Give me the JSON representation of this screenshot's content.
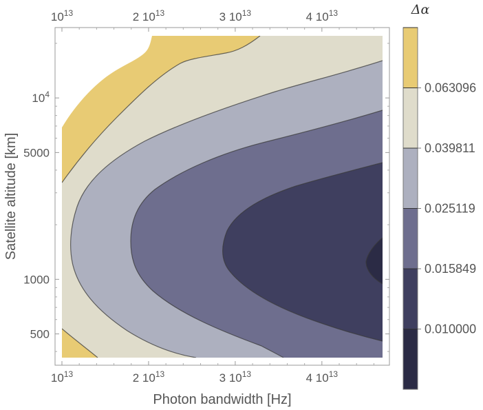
{
  "chart_data": {
    "type": "contour",
    "xlabel": "Photon bandwidth [Hz]",
    "ylabel": "Satellite altitude [km]",
    "xlim": [
      10000000000000.0,
      47000000000000.0
    ],
    "ylim": [
      370,
      22000
    ],
    "yscale": "log",
    "x_ticks": [
      {
        "value": 10000000000000.0,
        "label": "10",
        "exp": "13"
      },
      {
        "value": 20000000000000.0,
        "label": "2 10",
        "exp": "13"
      },
      {
        "value": 30000000000000.0,
        "label": "3 10",
        "exp": "13"
      },
      {
        "value": 40000000000000.0,
        "label": "4 10",
        "exp": "13"
      }
    ],
    "y_ticks": [
      {
        "value": 500,
        "label": "500",
        "exp": ""
      },
      {
        "value": 1000,
        "label": "1000",
        "exp": ""
      },
      {
        "value": 5000,
        "label": "5000",
        "exp": ""
      },
      {
        "value": 10000,
        "label": "10",
        "exp": "4"
      }
    ],
    "colorbar": {
      "title": "Δα",
      "levels": [
        0.01,
        0.015849,
        0.025119,
        0.039811,
        0.063096
      ],
      "level_labels": [
        "0.010000",
        "0.015849",
        "0.025119",
        "0.039811",
        "0.063096"
      ],
      "band_colors": [
        "#2b2b45",
        "#3f3f5f",
        "#6e6e8e",
        "#adb0bf",
        "#dfdccb",
        "#e8cb74"
      ]
    },
    "regions_top_to_bottom": [
      {
        "level_band": 5,
        "color": "#e8cb74"
      },
      {
        "level_band": 4,
        "color": "#dfdccb"
      },
      {
        "level_band": 3,
        "color": "#adb0bf"
      },
      {
        "level_band": 2,
        "color": "#6e6e8e"
      },
      {
        "level_band": 1,
        "color": "#3f3f5f"
      },
      {
        "level_band": 0,
        "color": "#2b2b45"
      }
    ]
  }
}
